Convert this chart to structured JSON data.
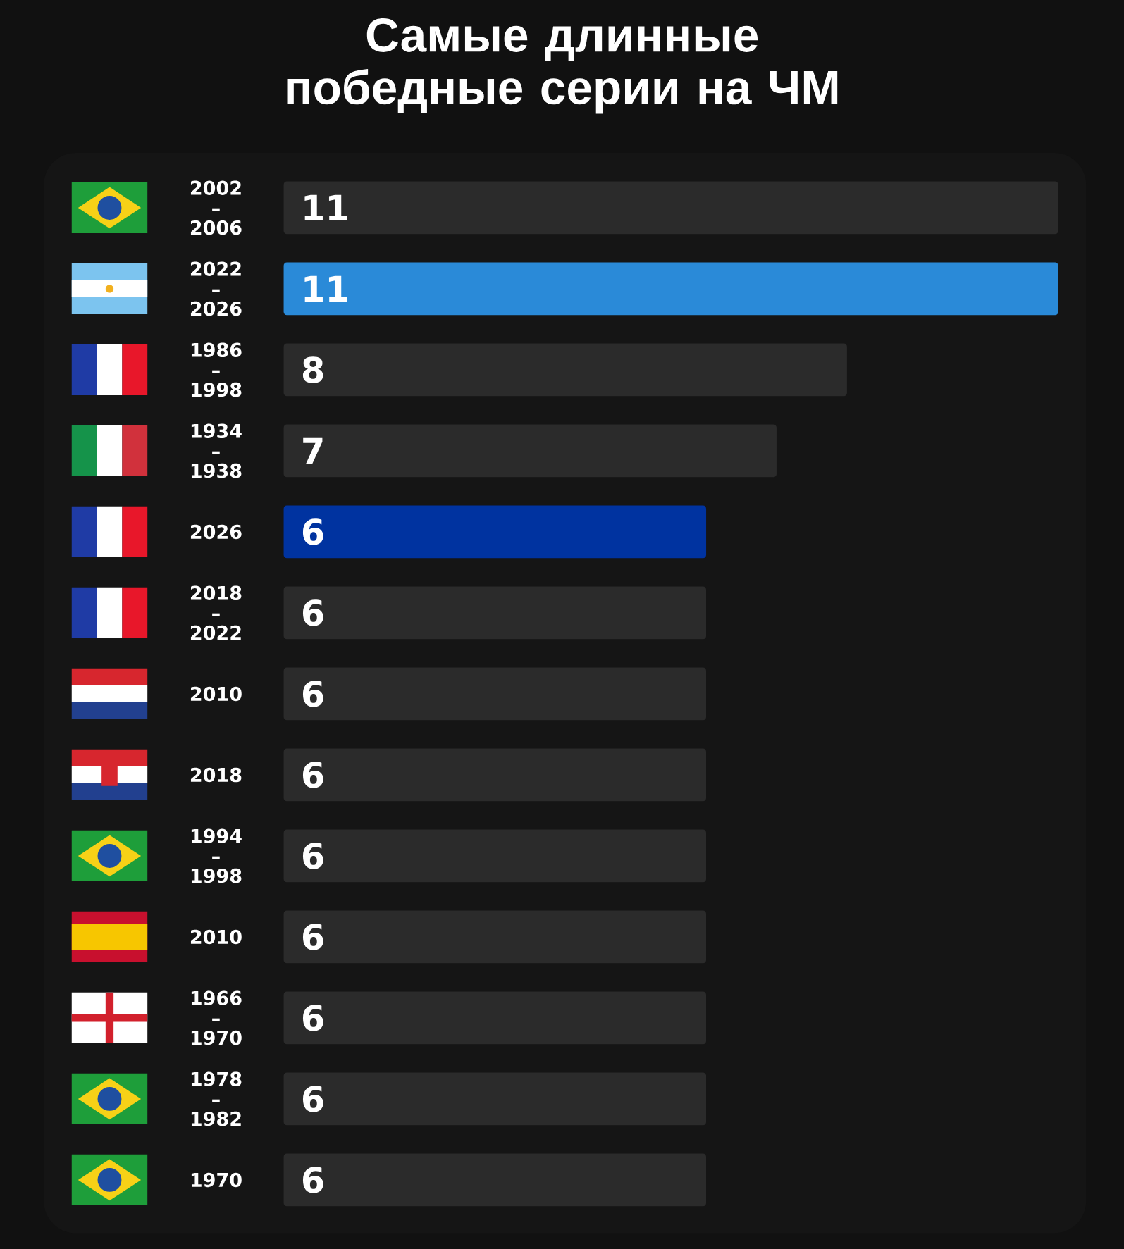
{
  "chart_data": {
    "type": "bar",
    "orientation": "horizontal",
    "title": "Самые длинные победные серии на ЧМ",
    "categories": [
      "2002 – 2006",
      "2022 – 2026",
      "1986 – 1998",
      "1934 – 1938",
      "2026",
      "2018 – 2022",
      "2010",
      "2018",
      "1994 – 1998",
      "2010",
      "1966 – 1970",
      "1978 – 1982",
      "1970"
    ],
    "values": [
      11,
      11,
      8,
      7,
      6,
      6,
      6,
      6,
      6,
      6,
      6,
      6,
      6
    ],
    "colors": [
      "#2b2b2b",
      "#2a8ad8",
      "#2b2b2b",
      "#2b2b2b",
      "#0033a0",
      "#2b2b2b",
      "#2b2b2b",
      "#2b2b2b",
      "#2b2b2b",
      "#2b2b2b",
      "#2b2b2b",
      "#2b2b2b",
      "#2b2b2b"
    ],
    "xlim": [
      0,
      11
    ],
    "tick_labels": "y",
    "data_labels": true
  }
}
